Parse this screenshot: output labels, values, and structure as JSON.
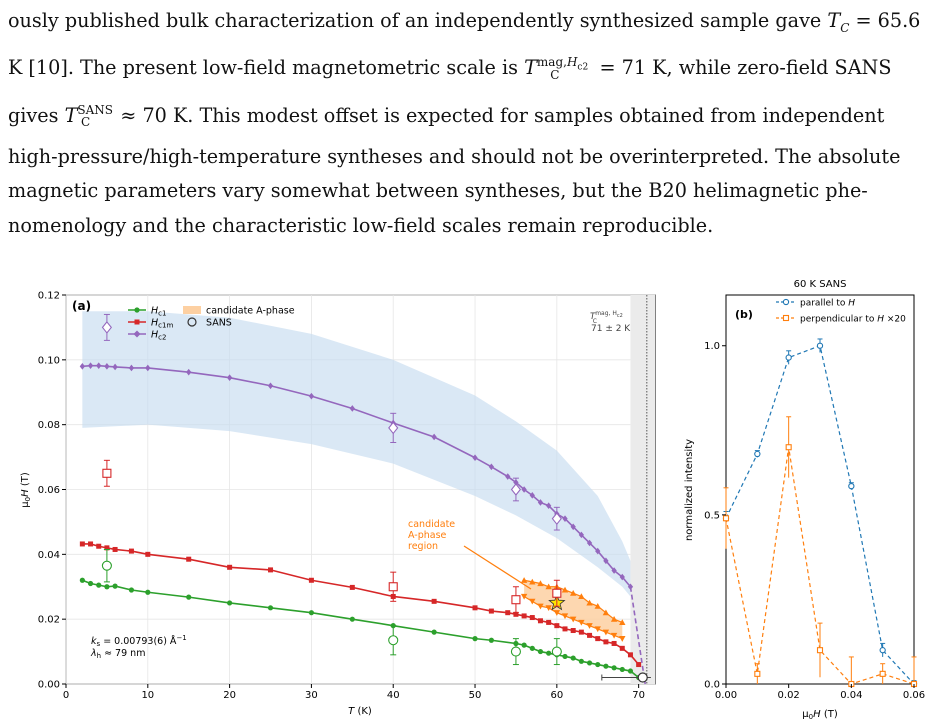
{
  "text": {
    "lines": [
      "ously published bulk characterization of an independently synthesized sample gave T_C = 65.6",
      "K [10]. The present low-field magnetometric scale is T_C^{mag,Hc2} = 71 K, while zero-field SANS",
      "gives T_C^SANS ≈ 70 K. This modest offset is expected for samples obtained from independent",
      "high-pressure/high-temperature syntheses and should not be overinterpreted. The absolute",
      "magnetic parameters vary somewhat between syntheses, but the B20 helimagnetic phe-",
      "nomenology and the characteristic low-field scales remain reproducible."
    ]
  },
  "colors": {
    "hc1": "#2ca02c",
    "hc1m": "#d62728",
    "hc2": "#9467bd",
    "band": "#c6dbef",
    "aphase": "#ff7f0e",
    "parallel": "#1f77b4",
    "perpendicular": "#ff7f0e"
  },
  "chart_data": [
    {
      "type": "line",
      "panel_label": "(a)",
      "xlabel": "T (K)",
      "ylabel": "μ0H (T)",
      "xlim": [
        0,
        72
      ],
      "ylim": [
        0,
        0.12
      ],
      "xticks": [
        "0",
        "10",
        "20",
        "30",
        "40",
        "50",
        "60",
        "70"
      ],
      "yticks": [
        "0.00",
        "0.02",
        "0.04",
        "0.06",
        "0.08",
        "0.10",
        "0.12"
      ],
      "grid": true,
      "legend": {
        "placement": "top-left",
        "entries": [
          "H_c1",
          "H_c1m",
          "H_c2",
          "candidate A-phase",
          "SANS"
        ]
      },
      "series": [
        {
          "name": "H_c1",
          "marker": "circle",
          "x": [
            2,
            3,
            4,
            5,
            6,
            8,
            10,
            15,
            20,
            25,
            30,
            35,
            40,
            45,
            50,
            52,
            55,
            56,
            57,
            58,
            59,
            60,
            61,
            62,
            63,
            64,
            65,
            66,
            67,
            68,
            69,
            70
          ],
          "y": [
            0.032,
            0.031,
            0.0305,
            0.03,
            0.0302,
            0.029,
            0.0283,
            0.0268,
            0.025,
            0.0235,
            0.022,
            0.02,
            0.018,
            0.016,
            0.014,
            0.0135,
            0.0125,
            0.012,
            0.011,
            0.01,
            0.0095,
            0.009,
            0.0085,
            0.008,
            0.007,
            0.0065,
            0.006,
            0.0055,
            0.005,
            0.0045,
            0.004,
            0.002
          ]
        },
        {
          "name": "H_c1m",
          "marker": "square",
          "x": [
            2,
            3,
            4,
            5,
            6,
            8,
            10,
            15,
            20,
            25,
            30,
            35,
            40,
            45,
            50,
            52,
            54,
            55,
            56,
            57,
            58,
            59,
            60,
            61,
            62,
            63,
            64,
            65,
            66,
            67,
            68,
            69,
            70
          ],
          "y": [
            0.0432,
            0.0432,
            0.0425,
            0.042,
            0.0415,
            0.041,
            0.04,
            0.0385,
            0.036,
            0.0352,
            0.032,
            0.0298,
            0.027,
            0.0255,
            0.0235,
            0.0225,
            0.022,
            0.0215,
            0.021,
            0.0205,
            0.0195,
            0.019,
            0.018,
            0.017,
            0.0165,
            0.016,
            0.015,
            0.014,
            0.013,
            0.0125,
            0.011,
            0.009,
            0.006
          ]
        },
        {
          "name": "H_c2",
          "marker": "diamond",
          "x": [
            2,
            3,
            4,
            5,
            6,
            8,
            10,
            15,
            20,
            25,
            30,
            35,
            40,
            45,
            50,
            52,
            54,
            55,
            56,
            57,
            58,
            59,
            60,
            61,
            62,
            63,
            64,
            65,
            66,
            67,
            68,
            69
          ],
          "y": [
            0.098,
            0.0982,
            0.0982,
            0.098,
            0.0978,
            0.0975,
            0.0975,
            0.0962,
            0.0945,
            0.092,
            0.0888,
            0.085,
            0.0805,
            0.0762,
            0.0698,
            0.067,
            0.064,
            0.0622,
            0.06,
            0.0582,
            0.056,
            0.055,
            0.0525,
            0.051,
            0.0485,
            0.046,
            0.0435,
            0.041,
            0.038,
            0.035,
            0.033,
            0.03
          ]
        }
      ],
      "sans_points": {
        "marker": "open",
        "hc1": [
          {
            "x": 5,
            "y": 0.0365,
            "err": 0.005
          },
          {
            "x": 40,
            "y": 0.0135,
            "err": 0.0045
          },
          {
            "x": 55,
            "y": 0.01,
            "err": 0.004
          },
          {
            "x": 60,
            "y": 0.01,
            "err": 0.004
          }
        ],
        "hc1m": [
          {
            "x": 5,
            "y": 0.065,
            "err": 0.004
          },
          {
            "x": 40,
            "y": 0.03,
            "err": 0.0045
          },
          {
            "x": 55,
            "y": 0.026,
            "err": 0.004
          },
          {
            "x": 60,
            "y": 0.028,
            "err": 0.004
          }
        ],
        "hc2": [
          {
            "x": 5,
            "y": 0.11,
            "err": 0.004
          },
          {
            "x": 40,
            "y": 0.079,
            "err": 0.0045
          },
          {
            "x": 55,
            "y": 0.06,
            "err": 0.0035
          },
          {
            "x": 60,
            "y": 0.051,
            "err": 0.0035
          }
        ],
        "tc": {
          "x": 70.5,
          "y": 0.002,
          "xerr": 5
        }
      },
      "band": {
        "x": [
          2,
          10,
          20,
          30,
          40,
          50,
          55,
          60,
          65,
          68,
          69
        ],
        "lower": [
          0.079,
          0.08,
          0.078,
          0.074,
          0.068,
          0.058,
          0.052,
          0.045,
          0.036,
          0.03,
          0.027
        ],
        "upper": [
          0.115,
          0.115,
          0.113,
          0.108,
          0.1,
          0.089,
          0.081,
          0.072,
          0.058,
          0.044,
          0.038
        ]
      },
      "hc2_extrapolation": {
        "x": [
          69,
          69.6,
          70.2,
          70.8
        ],
        "y": [
          0.03,
          0.02,
          0.01,
          0.0
        ]
      },
      "candidate_a_phase": {
        "upper_edge": {
          "x": [
            56,
            57,
            58,
            59,
            60,
            61,
            62,
            63,
            64,
            65,
            66,
            67,
            68
          ],
          "y": [
            0.032,
            0.0315,
            0.031,
            0.03,
            0.03,
            0.029,
            0.028,
            0.027,
            0.025,
            0.024,
            0.022,
            0.02,
            0.019
          ]
        },
        "lower_edge": {
          "x": [
            56,
            57,
            58,
            59,
            60,
            61,
            62,
            63,
            64,
            65,
            66,
            67,
            68
          ],
          "y": [
            0.027,
            0.0255,
            0.024,
            0.0235,
            0.022,
            0.021,
            0.02,
            0.019,
            0.018,
            0.017,
            0.016,
            0.015,
            0.014
          ]
        },
        "star": {
          "x": 60,
          "y": 0.025
        },
        "label": [
          "candidate",
          "A-phase",
          "region"
        ]
      },
      "tc_line": {
        "x": 71,
        "label_line1": "T_C^{mag,Hc2}",
        "label_line2": "71 ± 2 K"
      },
      "shaded_region": {
        "x": [
          69,
          72
        ]
      },
      "annotations": [
        "k_s = 0.00793(6) Å⁻¹",
        "λ_h ≈ 79 nm"
      ]
    },
    {
      "type": "line",
      "panel_label": "(b)",
      "title": "60 K SANS",
      "xlabel": "μ0H (T)",
      "ylabel": "normalized intensity",
      "xlim": [
        0,
        0.06
      ],
      "ylim": [
        0,
        1.15
      ],
      "xticks": [
        "0.00",
        "0.02",
        "0.04",
        "0.06"
      ],
      "yticks": [
        "0.0",
        "0.5",
        "1.0"
      ],
      "legend": {
        "placement": "top-right",
        "entries": [
          "parallel to H",
          "perpendicular to H ×20"
        ]
      },
      "series": [
        {
          "name": "parallel to H",
          "marker": "circle",
          "x": [
            0.0,
            0.01,
            0.02,
            0.03,
            0.04,
            0.05,
            0.06
          ],
          "y": [
            0.49,
            0.68,
            0.965,
            1.0,
            0.585,
            0.1,
            0.0
          ],
          "err": [
            0.02,
            0.01,
            0.02,
            0.02,
            0.01,
            0.02,
            0.01
          ]
        },
        {
          "name": "perpendicular to H ×20",
          "marker": "square",
          "x": [
            0.0,
            0.01,
            0.02,
            0.03,
            0.04,
            0.05,
            0.06
          ],
          "y": [
            0.49,
            0.03,
            0.7,
            0.1,
            0.0,
            0.03,
            0.0
          ],
          "err": [
            0.09,
            0.03,
            0.09,
            0.08,
            0.08,
            0.03,
            0.08
          ]
        }
      ]
    }
  ]
}
